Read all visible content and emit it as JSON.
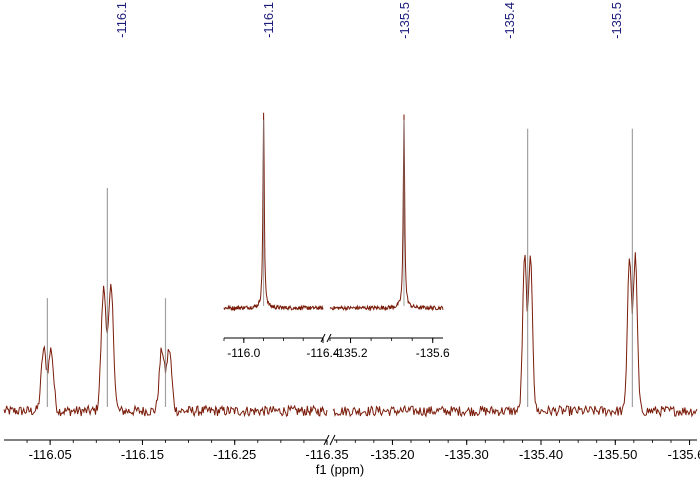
{
  "chart_data": {
    "type": "line",
    "xlabel": "f1 (ppm)",
    "axis_break": true,
    "colors": {
      "trace": "#7a1c0a",
      "axis": "#000000",
      "peak_label": "#1a1a7a",
      "peak_core": "#8a8a8a"
    },
    "main": {
      "segments": [
        {
          "xlim": [
            -116.0,
            -116.35
          ],
          "ticks": [
            "-116.05",
            "-116.15",
            "-116.25",
            "-116.35"
          ],
          "tick_values": [
            -116.05,
            -116.15,
            -116.25,
            -116.35
          ]
        },
        {
          "xlim": [
            -135.12,
            -135.61
          ],
          "ticks": [
            "-135.20",
            "-135.30",
            "-135.40",
            "-135.50",
            "-135.60"
          ],
          "tick_values": [
            -135.2,
            -135.3,
            -135.4,
            -135.5,
            -135.6
          ]
        }
      ],
      "peaks": [
        {
          "segment": 0,
          "center": -116.047,
          "height": 0.4,
          "split": 0.004
        },
        {
          "segment": 0,
          "center": -116.112,
          "height": 0.79,
          "split": 0.004
        },
        {
          "segment": 0,
          "center": -116.175,
          "height": 0.4,
          "split": 0.004
        },
        {
          "segment": 1,
          "center": -135.382,
          "height": 1.0,
          "split": 0.004
        },
        {
          "segment": 1,
          "center": -135.523,
          "height": 1.0,
          "split": 0.004
        }
      ]
    },
    "inset": {
      "segments": [
        {
          "xlim": [
            -115.9,
            -116.4
          ],
          "ticks": [
            "-116.0",
            "-116.4"
          ],
          "tick_values": [
            -116.0,
            -116.4
          ]
        },
        {
          "xlim": [
            -135.1,
            -135.65
          ],
          "ticks": [
            "-135.2",
            "-135.6"
          ],
          "tick_values": [
            -135.2,
            -135.6
          ]
        }
      ],
      "peaks": [
        {
          "segment": 0,
          "center": -116.1,
          "height": 1.0
        },
        {
          "segment": 1,
          "center": -135.46,
          "height": 1.0
        }
      ]
    },
    "peak_labels": [
      "-116.1",
      "-116.1",
      "-135.5",
      "-135.4",
      "-135.5"
    ]
  }
}
